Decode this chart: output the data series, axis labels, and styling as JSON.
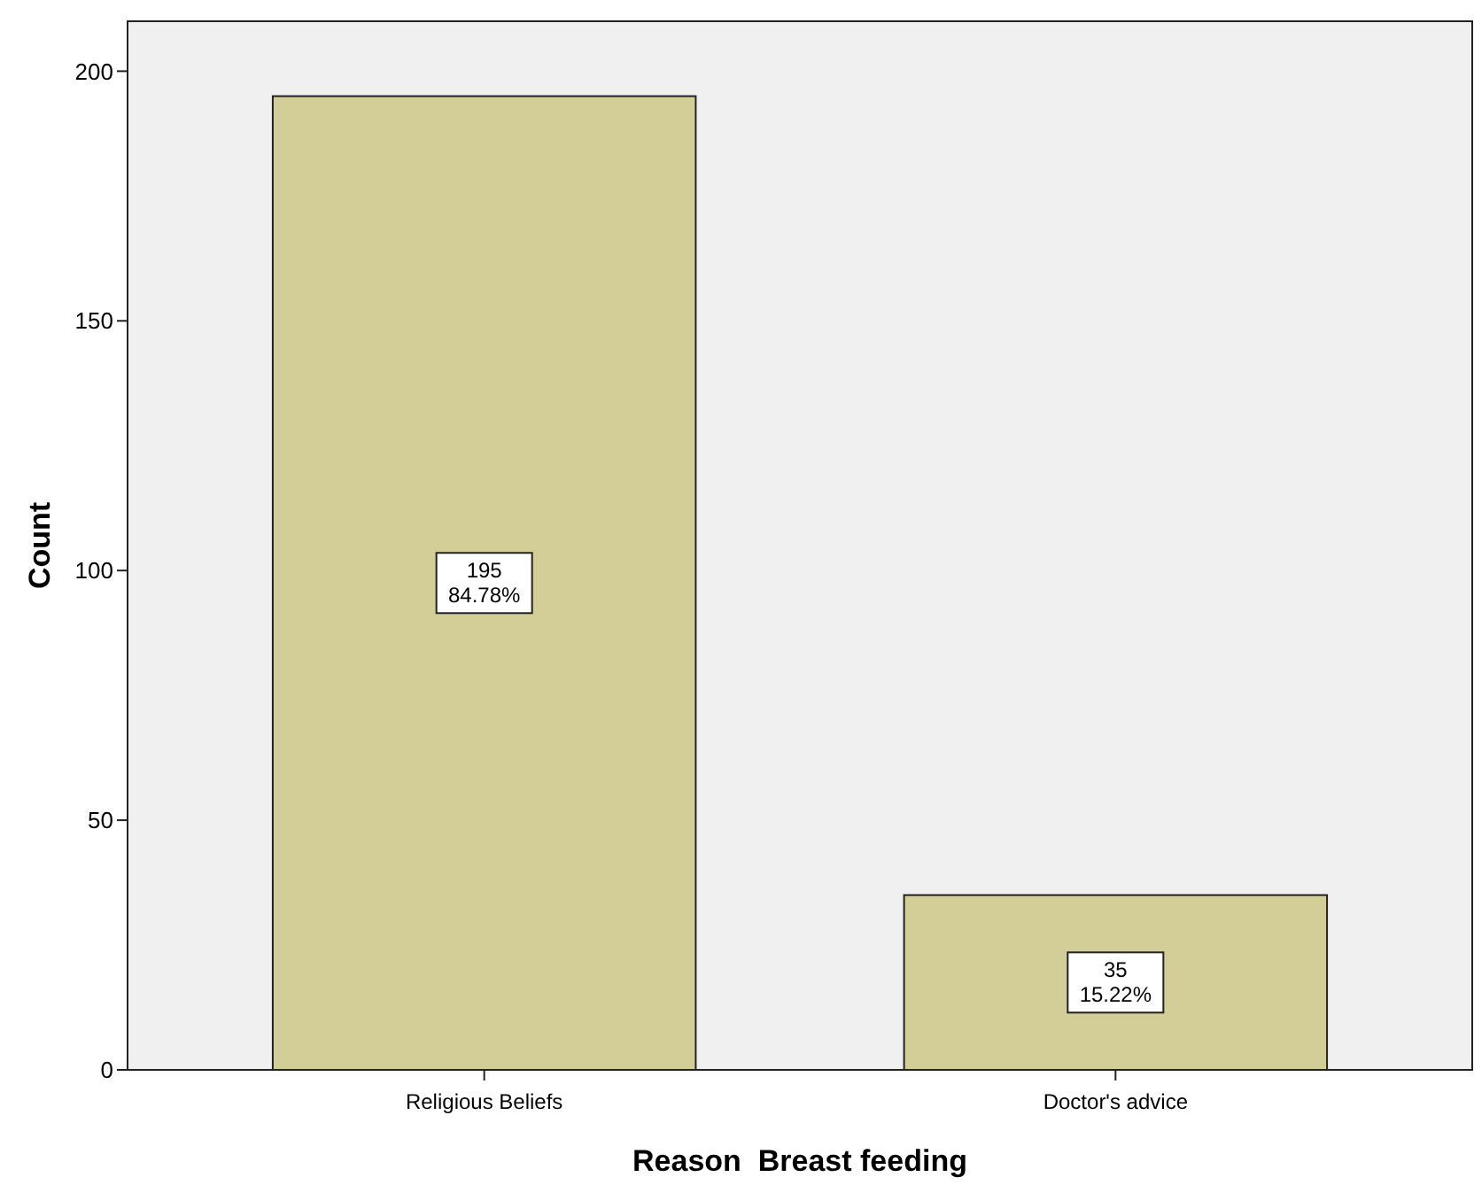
{
  "chart_data": {
    "type": "bar",
    "xlabel": "Reason  Breast feeding",
    "ylabel": "Count",
    "categories": [
      "Religious Beliefs",
      "Doctor's advice"
    ],
    "values": [
      195,
      35
    ],
    "color": "#d3ce97",
    "value_labels": [
      "195\n84.78%",
      "35\n15.22%"
    ],
    "ylim": [
      0,
      210
    ],
    "yticks": [
      0,
      50,
      100,
      150,
      200
    ],
    "grid": false
  }
}
